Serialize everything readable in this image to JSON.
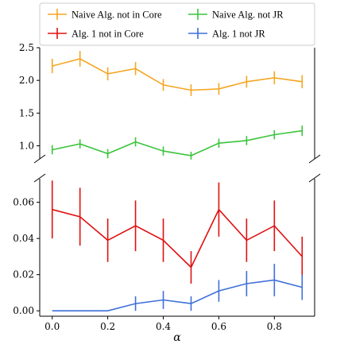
{
  "chart_data": {
    "type": "line",
    "xlabel": "α",
    "x": [
      0.0,
      0.1,
      0.2,
      0.3,
      0.4,
      0.5,
      0.6,
      0.7,
      0.8,
      0.9
    ],
    "xlim": [
      -0.045,
      0.945
    ],
    "x_ticks": [
      "0.0",
      "0.2",
      "0.4",
      "0.6",
      "0.8"
    ],
    "x_tick_values": [
      0.0,
      0.2,
      0.4,
      0.6,
      0.8
    ],
    "broken_y_axis": true,
    "grid": false,
    "legend_position": "top",
    "upper_panel": {
      "ylim": [
        0.8,
        2.5
      ],
      "y_ticks": [
        "1.0",
        "1.5",
        "2.0",
        "2.5"
      ],
      "y_tick_values": [
        1.0,
        1.5,
        2.0,
        2.5
      ],
      "series": [
        {
          "name": "Naive Alg. not in Core",
          "color": "#f5a623",
          "values": [
            2.22,
            2.33,
            2.1,
            2.18,
            1.93,
            1.85,
            1.87,
            1.98,
            2.04,
            1.98
          ],
          "errors": [
            0.11,
            0.12,
            0.1,
            0.1,
            0.09,
            0.09,
            0.09,
            0.09,
            0.1,
            0.1
          ]
        },
        {
          "name": "Naive Alg. not JR",
          "color": "#3cc43c",
          "values": [
            0.94,
            1.03,
            0.88,
            1.06,
            0.92,
            0.85,
            1.04,
            1.08,
            1.17,
            1.23
          ],
          "errors": [
            0.07,
            0.07,
            0.07,
            0.07,
            0.07,
            0.06,
            0.07,
            0.07,
            0.07,
            0.08
          ]
        }
      ]
    },
    "lower_panel": {
      "ylim": [
        -0.003,
        0.073
      ],
      "y_ticks": [
        "0.00",
        "0.02",
        "0.04",
        "0.06"
      ],
      "y_tick_values": [
        0.0,
        0.02,
        0.04,
        0.06
      ],
      "series": [
        {
          "name": "Alg. 1 not in Core",
          "color": "#e01010",
          "values": [
            0.056,
            0.052,
            0.039,
            0.047,
            0.039,
            0.024,
            0.056,
            0.039,
            0.047,
            0.03
          ],
          "errors": [
            0.016,
            0.016,
            0.012,
            0.014,
            0.012,
            0.009,
            0.015,
            0.012,
            0.014,
            0.011
          ]
        },
        {
          "name": "Alg. 1 not JR",
          "color": "#3d6fd9",
          "values": [
            0.0,
            0.0,
            0.0,
            0.004,
            0.006,
            0.004,
            0.011,
            0.015,
            0.017,
            0.013
          ],
          "errors": [
            0.0,
            0.0,
            0.0,
            0.004,
            0.005,
            0.004,
            0.006,
            0.007,
            0.009,
            0.007
          ]
        }
      ]
    },
    "legend": [
      {
        "label": "Naive Alg. not in Core",
        "color": "#f5a623"
      },
      {
        "label": "Alg. 1 not in Core",
        "color": "#e01010"
      },
      {
        "label": "Naive Alg. not JR",
        "color": "#3cc43c"
      },
      {
        "label": "Alg. 1 not JR",
        "color": "#3d6fd9"
      }
    ]
  }
}
